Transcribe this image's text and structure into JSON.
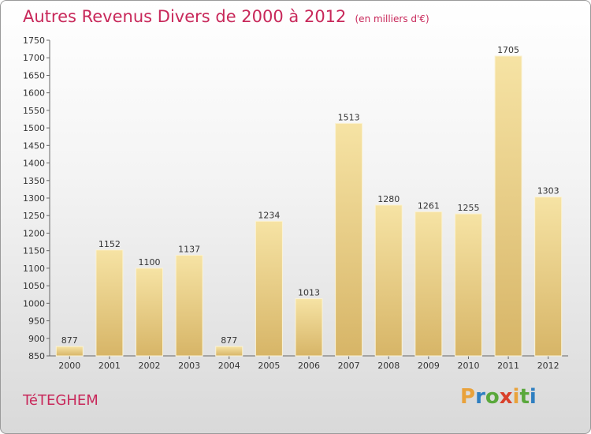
{
  "title": "Autres Revenus Divers de 2000 à 2012",
  "unit": "(en milliers d'€)",
  "commune": "TéTEGHEM",
  "logo": {
    "letters": [
      "P",
      "r",
      "o",
      "x",
      "i",
      "t",
      "i"
    ],
    "colors": [
      "#e9a23b",
      "#2f7fc1",
      "#5aa83c",
      "#d9412b",
      "#e9a23b",
      "#5aa83c",
      "#2f7fc1"
    ]
  },
  "colors": {
    "bar_light": "#f6e3a4",
    "bar_dark": "#d7b567",
    "title": "#c8285a"
  },
  "chart_data": {
    "type": "bar",
    "categories": [
      "2000",
      "2001",
      "2002",
      "2003",
      "2004",
      "2005",
      "2006",
      "2007",
      "2008",
      "2009",
      "2010",
      "2011",
      "2012"
    ],
    "values": [
      877,
      1152,
      1100,
      1137,
      877,
      1234,
      1013,
      1513,
      1280,
      1261,
      1255,
      1705,
      1303
    ],
    "ylim": [
      850,
      1750
    ],
    "yticks": [
      850,
      900,
      950,
      1000,
      1050,
      1100,
      1150,
      1200,
      1250,
      1300,
      1350,
      1400,
      1450,
      1500,
      1550,
      1600,
      1650,
      1700,
      1750
    ],
    "grid": false
  }
}
